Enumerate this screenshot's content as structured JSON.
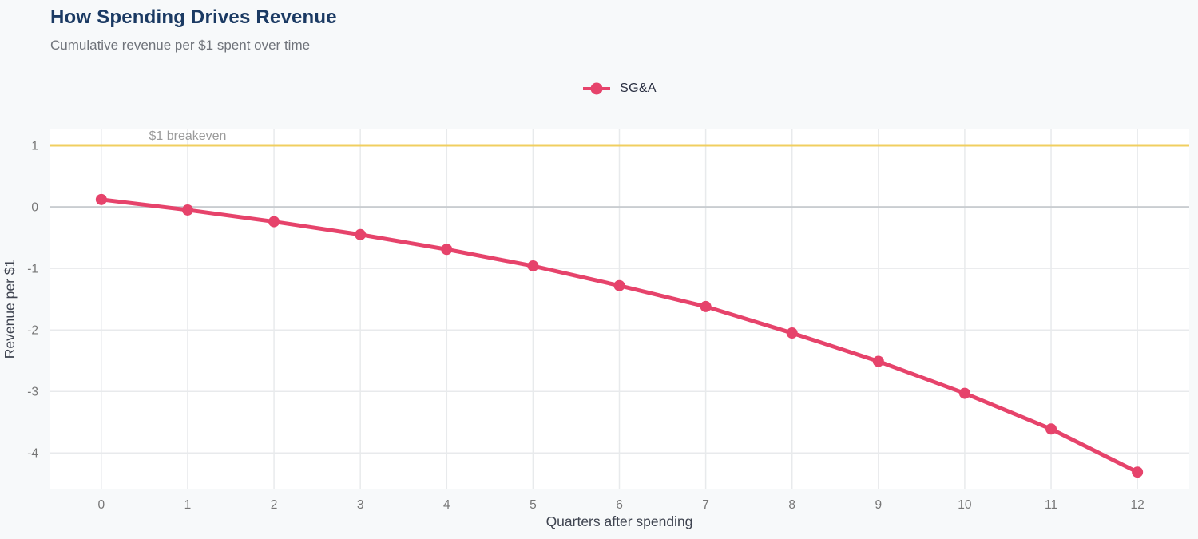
{
  "header": {
    "title": "How Spending Drives Revenue",
    "subtitle": "Cumulative revenue per $1 spent over time"
  },
  "legend": {
    "position": "top-center",
    "items": [
      {
        "label": "SG&A",
        "color": "#e6436b"
      }
    ]
  },
  "chart_data": {
    "type": "line",
    "title": "How Spending Drives Revenue",
    "subtitle": "Cumulative revenue per $1 spent over time",
    "xlabel": "Quarters after spending",
    "ylabel": "Revenue per $1",
    "x": [
      0,
      1,
      2,
      3,
      4,
      5,
      6,
      7,
      8,
      9,
      10,
      11,
      12
    ],
    "series": [
      {
        "name": "SG&A",
        "color": "#e6436b",
        "values": [
          0.12,
          -0.05,
          -0.24,
          -0.45,
          -0.69,
          -0.96,
          -1.28,
          -1.62,
          -2.05,
          -2.51,
          -3.03,
          -3.61,
          -4.31
        ]
      }
    ],
    "xticks": [
      0,
      1,
      2,
      3,
      4,
      5,
      6,
      7,
      8,
      9,
      10,
      11,
      12
    ],
    "yticks": [
      1,
      0,
      -1,
      -2,
      -3,
      -4
    ],
    "xlim": [
      -0.6,
      12.6
    ],
    "ylim": [
      -4.58,
      1.26
    ],
    "grid": true,
    "legend_position": "top-center",
    "reference_line": {
      "y": 1,
      "label": "$1 breakeven",
      "color": "#f0cf60",
      "label_color": "#9b9b9b"
    }
  },
  "colors": {
    "page_bg": "#f7f9fa",
    "plot_bg": "#ffffff",
    "grid": "#e8eaec",
    "zero_line": "#c9cdd1",
    "title": "#1b3a63",
    "subtitle": "#6f737a",
    "tick_label": "#767676",
    "axis_title": "#3f4450",
    "legend_label": "#2b3042"
  }
}
